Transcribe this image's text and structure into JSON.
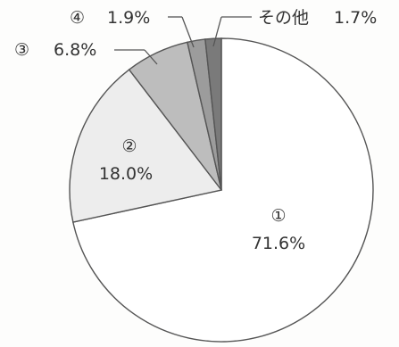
{
  "chart_data": {
    "type": "pie",
    "start_angle_deg": 0,
    "direction": "clockwise",
    "slices": [
      {
        "marker": "①",
        "value": 71.6,
        "value_label": "71.6%",
        "color": "#ffffff"
      },
      {
        "marker": "②",
        "value": 18.0,
        "value_label": "18.0%",
        "color": "#ededed"
      },
      {
        "marker": "③",
        "value": 6.8,
        "value_label": "6.8%",
        "color": "#bdbdbd"
      },
      {
        "marker": "④",
        "value": 1.9,
        "value_label": "1.9%",
        "color": "#9c9c9c"
      },
      {
        "marker": "その他",
        "value": 1.7,
        "value_label": "1.7%",
        "color": "#7a7a7a"
      }
    ],
    "outline_color": "#555555"
  }
}
